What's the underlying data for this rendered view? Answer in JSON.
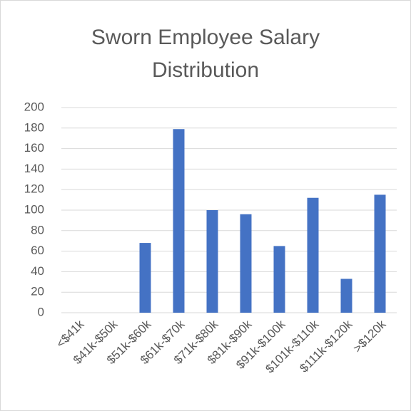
{
  "chart_data": {
    "type": "bar",
    "title": "Sworn Employee Salary Distribution",
    "categories": [
      "<$41k",
      "$41k-$50k",
      "$51k-$60k",
      "$61k-$70k",
      "$71k-$80k",
      "$81k-$90k",
      "$91k-$100k",
      "$101k-$110k",
      "$111k-$120k",
      ">$120k"
    ],
    "values": [
      0,
      0,
      68,
      179,
      100,
      96,
      65,
      112,
      33,
      115
    ],
    "color": "#4472c4",
    "ylim": [
      0,
      200
    ],
    "yticks": [
      0,
      20,
      40,
      60,
      80,
      100,
      120,
      140,
      160,
      180,
      200
    ],
    "grid": true
  }
}
